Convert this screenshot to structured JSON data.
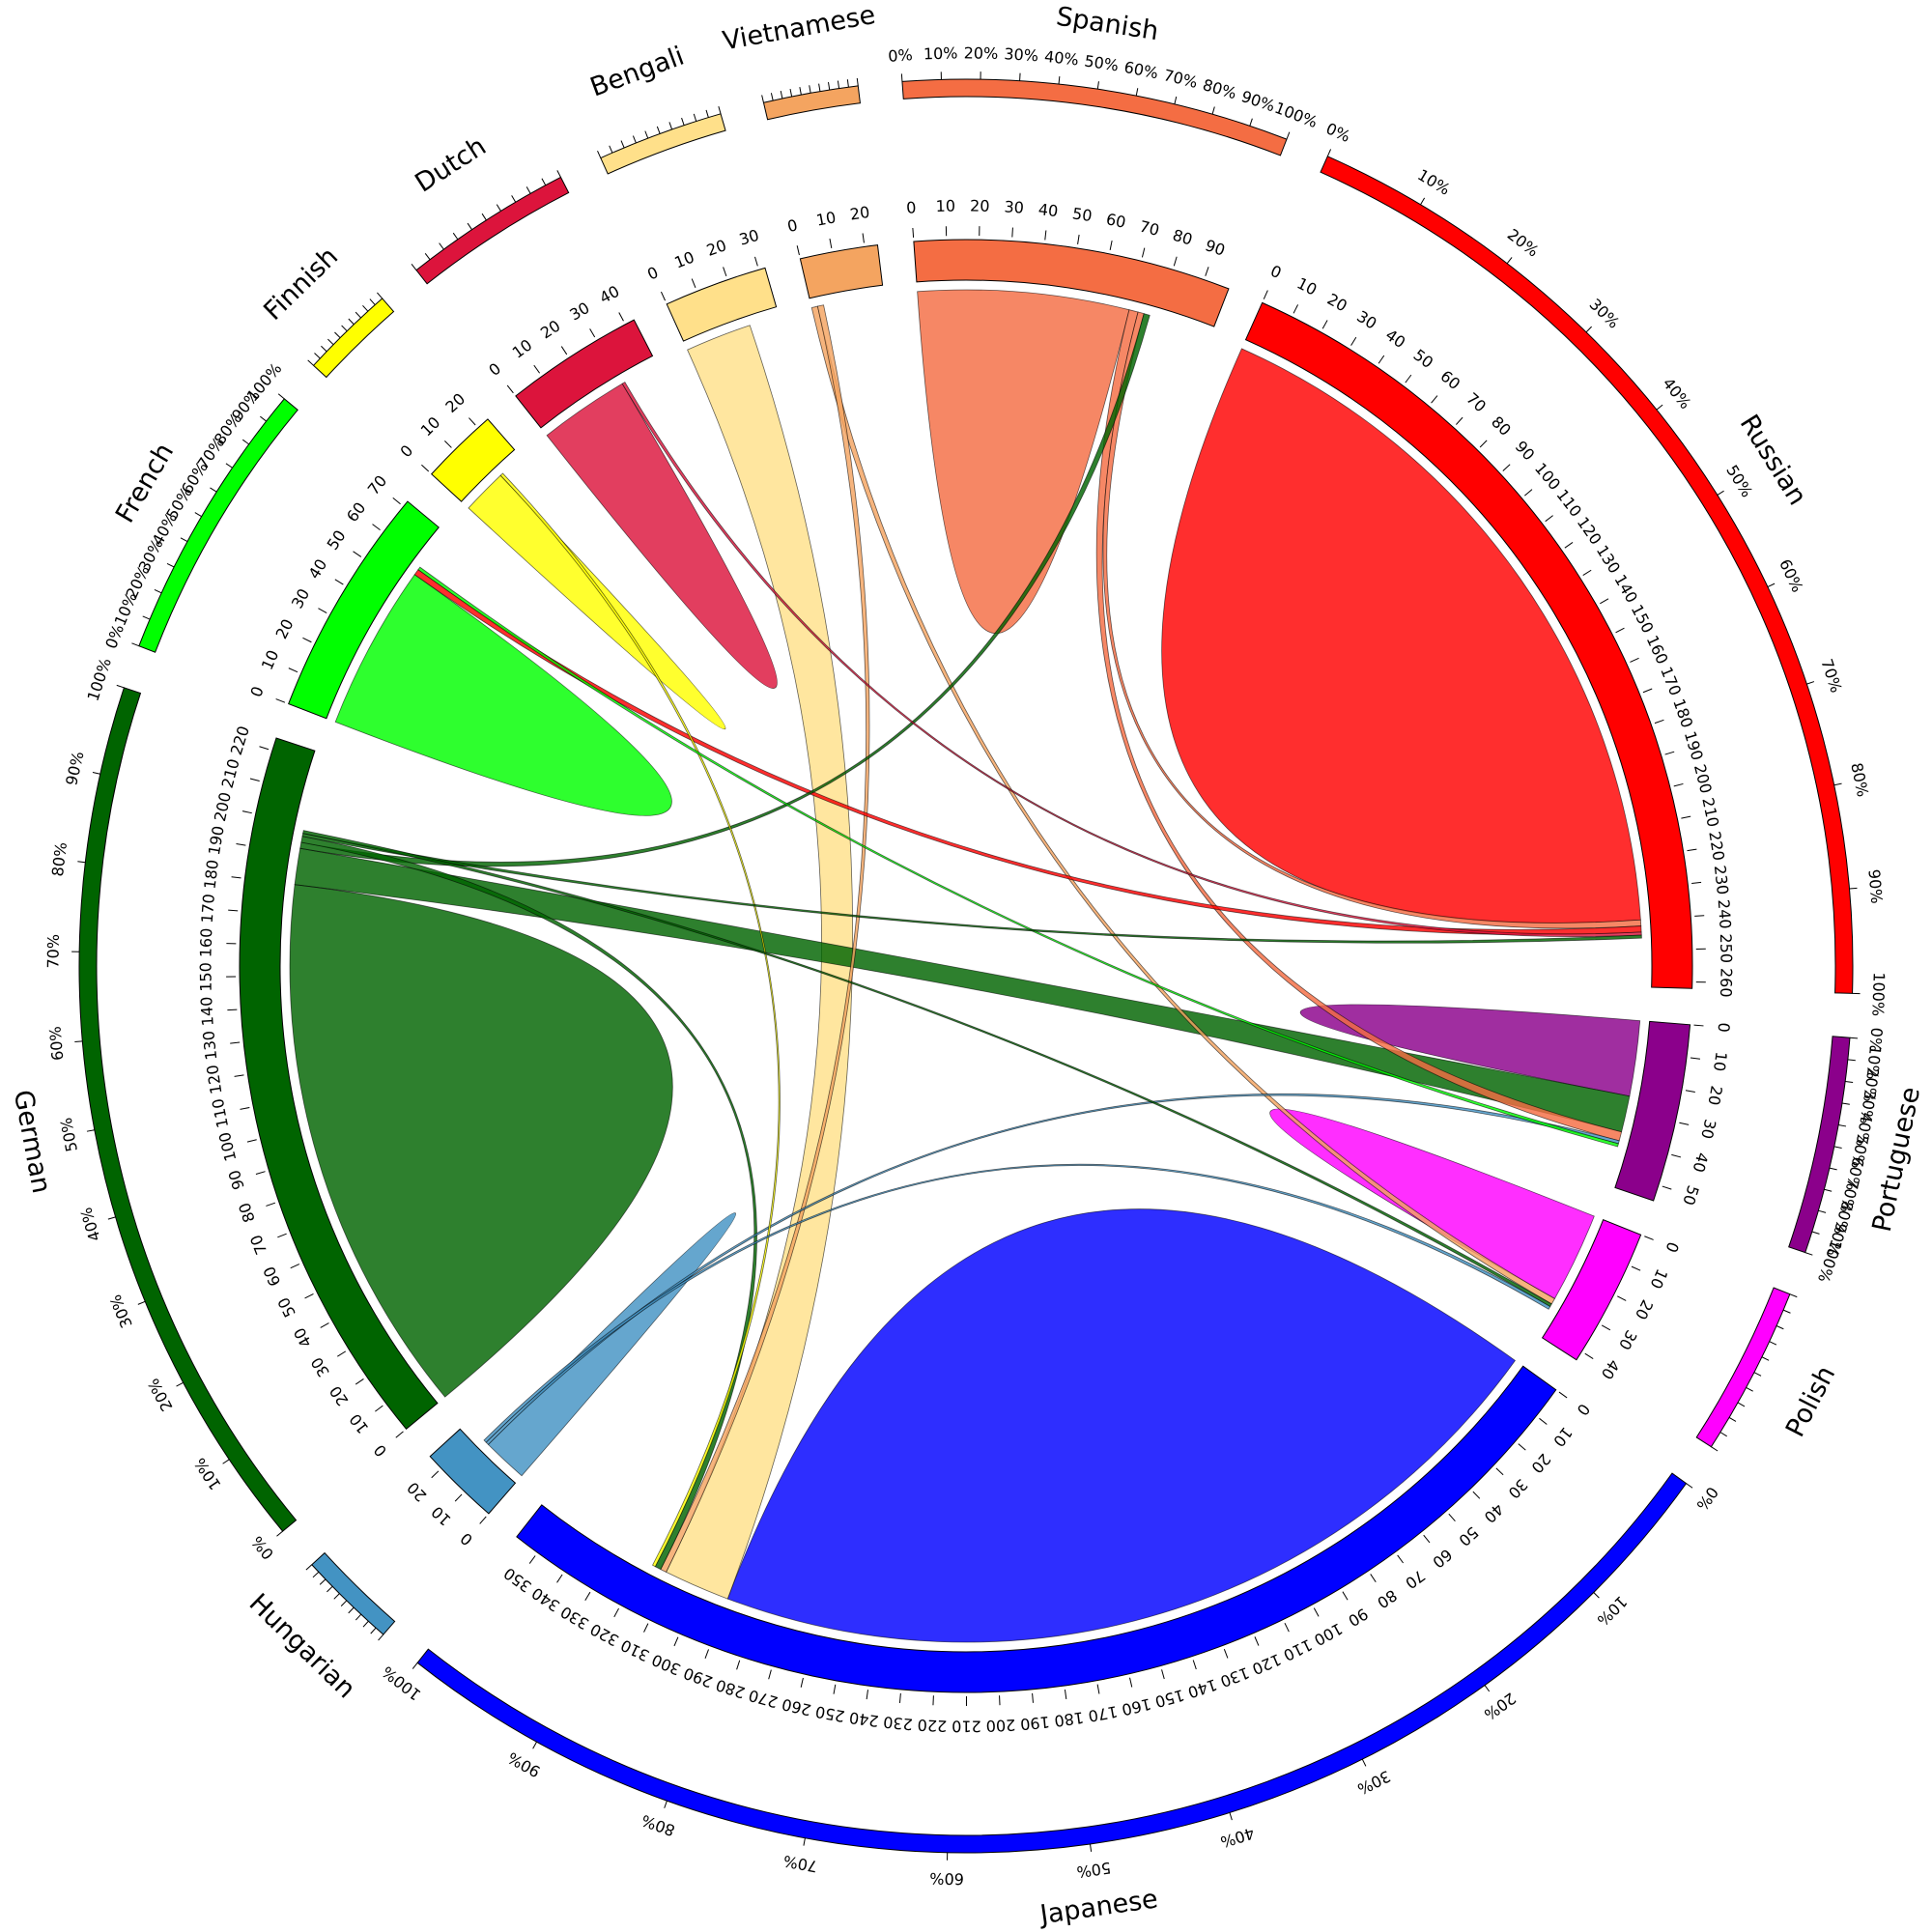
{
  "chart_data": {
    "type": "chord",
    "segments": [
      {
        "name": "Russian",
        "color": "#ff0000",
        "total": 262
      },
      {
        "name": "Portuguese",
        "color": "#8b008b",
        "total": 55
      },
      {
        "name": "Polish",
        "color": "#ff00ff",
        "total": 43
      },
      {
        "name": "Japanese",
        "color": "#0000ff",
        "total": 358
      },
      {
        "name": "Hungarian",
        "color": "#4393c3",
        "total": 25
      },
      {
        "name": "German",
        "color": "#006400",
        "total": 224
      },
      {
        "name": "French",
        "color": "#00ff00",
        "total": 72
      },
      {
        "name": "Finnish",
        "color": "#ffff00",
        "total": 24
      },
      {
        "name": "Dutch",
        "color": "#dc143c",
        "total": 43
      },
      {
        "name": "Bengali",
        "color": "#ffe08a",
        "total": 32
      },
      {
        "name": "Vietnamese",
        "color": "#f4a460",
        "total": 24
      },
      {
        "name": "Spanish",
        "color": "#f46d43",
        "total": 98
      }
    ],
    "flows": [
      {
        "from": "Russian",
        "to": "Russian",
        "value": 240
      },
      {
        "from": "Japanese",
        "to": "Japanese",
        "value": 290
      },
      {
        "from": "German",
        "to": "German",
        "value": 180
      },
      {
        "from": "Spanish",
        "to": "Spanish",
        "value": 70
      },
      {
        "from": "French",
        "to": "French",
        "value": 55
      },
      {
        "from": "Dutch",
        "to": "Dutch",
        "value": 30
      },
      {
        "from": "Finnish",
        "to": "Finnish",
        "value": 15
      },
      {
        "from": "Portuguese",
        "to": "Portuguese",
        "value": 25
      },
      {
        "from": "Polish",
        "to": "Polish",
        "value": 30
      },
      {
        "from": "Hungarian",
        "to": "Hungarian",
        "value": 15
      },
      {
        "from": "Bengali",
        "to": "Japanese",
        "value": 22
      },
      {
        "from": "German",
        "to": "Portuguese",
        "value": 12
      },
      {
        "from": "Spanish",
        "to": "Portuguese",
        "value": 3
      },
      {
        "from": "Spanish",
        "to": "Russian",
        "value": 2
      },
      {
        "from": "Vietnamese",
        "to": "Polish",
        "value": 2
      },
      {
        "from": "Vietnamese",
        "to": "Japanese",
        "value": 2
      },
      {
        "from": "Russian",
        "to": "French",
        "value": 2
      },
      {
        "from": "German",
        "to": "Spanish",
        "value": 2
      },
      {
        "from": "German",
        "to": "Japanese",
        "value": 2
      },
      {
        "from": "Hungarian",
        "to": "Portuguese",
        "value": 1
      },
      {
        "from": "Finnish",
        "to": "Japanese",
        "value": 1
      },
      {
        "from": "French",
        "to": "Portuguese",
        "value": 1
      },
      {
        "from": "Dutch",
        "to": "Russian",
        "value": 1
      },
      {
        "from": "German",
        "to": "Russian",
        "value": 1
      },
      {
        "from": "German",
        "to": "Polish",
        "value": 1
      },
      {
        "from": "Hungarian",
        "to": "Polish",
        "value": 1
      }
    ],
    "tick_step": 10,
    "percent_ticks": [
      "0%",
      "10%",
      "20%",
      "30%",
      "40%",
      "50%",
      "60%",
      "70%",
      "80%",
      "90%",
      "100%"
    ],
    "grid": false,
    "legend": "none"
  }
}
